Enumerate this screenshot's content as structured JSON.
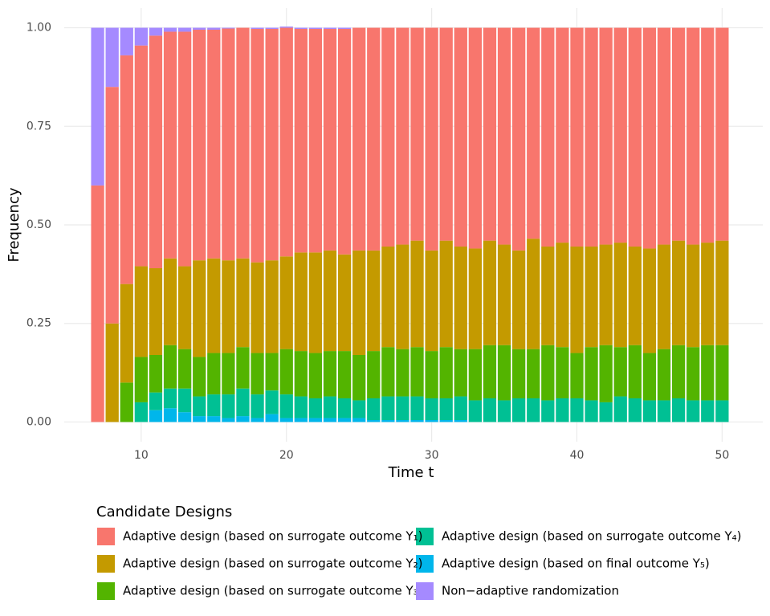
{
  "chart_data": {
    "type": "stacked_bar",
    "x_label": "Time t",
    "y_label": "Frequency",
    "legend_title": "Candidate Designs",
    "x": [
      7,
      8,
      9,
      10,
      11,
      12,
      13,
      14,
      15,
      16,
      17,
      18,
      19,
      20,
      21,
      22,
      23,
      24,
      25,
      26,
      27,
      28,
      29,
      30,
      31,
      32,
      33,
      34,
      35,
      36,
      37,
      38,
      39,
      40,
      41,
      42,
      43,
      44,
      45,
      46,
      47,
      48,
      49,
      50
    ],
    "xlim": [
      4.7,
      52.8
    ],
    "xticks": [
      10,
      20,
      30,
      40,
      50
    ],
    "ylim": [
      -0.05,
      1.05
    ],
    "yticks": [
      {
        "value": 0,
        "label": "0.00"
      },
      {
        "value": 0.25,
        "label": "0.25"
      },
      {
        "value": 0.5,
        "label": "0.50"
      },
      {
        "value": 0.75,
        "label": "0.75"
      },
      {
        "value": 1,
        "label": "1.00"
      }
    ],
    "grid": true,
    "series": [
      {
        "name": "Adaptive design (based on final outcome Y₅)",
        "color": "#00B6EB",
        "values": [
          0,
          0,
          0,
          0,
          0.03,
          0.035,
          0.025,
          0.015,
          0.015,
          0.01,
          0.015,
          0.01,
          0.02,
          0.01,
          0.01,
          0.01,
          0.01,
          0.01,
          0.01,
          0.005,
          0.005,
          0.005,
          0.005,
          0.005,
          0.005,
          0.005,
          0,
          0,
          0,
          0,
          0,
          0,
          0,
          0,
          0,
          0,
          0,
          0,
          0,
          0,
          0,
          0,
          0,
          0
        ]
      },
      {
        "name": "Adaptive design (based on surrogate outcome Y₄)",
        "color": "#00C094",
        "values": [
          0,
          0,
          0,
          0.05,
          0.045,
          0.05,
          0.06,
          0.05,
          0.055,
          0.06,
          0.07,
          0.06,
          0.06,
          0.06,
          0.055,
          0.05,
          0.055,
          0.05,
          0.045,
          0.055,
          0.06,
          0.06,
          0.06,
          0.055,
          0.055,
          0.06,
          0.055,
          0.06,
          0.055,
          0.06,
          0.06,
          0.055,
          0.06,
          0.06,
          0.055,
          0.05,
          0.065,
          0.06,
          0.055,
          0.055,
          0.06,
          0.055,
          0.055,
          0.055
        ]
      },
      {
        "name": "Adaptive design (based on surrogate outcome Y₃)",
        "color": "#53B400",
        "values": [
          0,
          0,
          0.1,
          0.115,
          0.095,
          0.11,
          0.1,
          0.1,
          0.105,
          0.105,
          0.105,
          0.105,
          0.095,
          0.115,
          0.115,
          0.115,
          0.115,
          0.12,
          0.115,
          0.12,
          0.125,
          0.12,
          0.125,
          0.12,
          0.13,
          0.12,
          0.13,
          0.135,
          0.14,
          0.125,
          0.125,
          0.14,
          0.13,
          0.115,
          0.135,
          0.145,
          0.125,
          0.135,
          0.12,
          0.13,
          0.135,
          0.135,
          0.14,
          0.14
        ]
      },
      {
        "name": "Adaptive design (based on surrogate outcome Y₂)",
        "color": "#C49A00",
        "values": [
          0,
          0.25,
          0.25,
          0.23,
          0.22,
          0.22,
          0.21,
          0.245,
          0.24,
          0.235,
          0.225,
          0.23,
          0.235,
          0.235,
          0.25,
          0.255,
          0.255,
          0.245,
          0.265,
          0.255,
          0.255,
          0.265,
          0.27,
          0.255,
          0.27,
          0.26,
          0.255,
          0.265,
          0.255,
          0.25,
          0.28,
          0.25,
          0.265,
          0.27,
          0.255,
          0.255,
          0.265,
          0.25,
          0.265,
          0.265,
          0.265,
          0.26,
          0.26,
          0.265
        ]
      },
      {
        "name": "Adaptive design (based on surrogate outcome Y₁)",
        "color": "#F8766D",
        "values": [
          0.6,
          0.6,
          0.58,
          0.56,
          0.59,
          0.575,
          0.595,
          0.585,
          0.58,
          0.588,
          0.585,
          0.592,
          0.587,
          0.58,
          0.567,
          0.567,
          0.562,
          0.572,
          0.565,
          0.565,
          0.555,
          0.55,
          0.54,
          0.565,
          0.54,
          0.555,
          0.56,
          0.54,
          0.55,
          0.565,
          0.535,
          0.555,
          0.545,
          0.555,
          0.555,
          0.55,
          0.545,
          0.555,
          0.56,
          0.55,
          0.54,
          0.55,
          0.545,
          0.54
        ]
      },
      {
        "name": "Non−adaptive randomization",
        "color": "#A58AFF",
        "values": [
          0.4,
          0.15,
          0.07,
          0.045,
          0.02,
          0.01,
          0.01,
          0.005,
          0.005,
          0.002,
          0,
          0.003,
          0.003,
          0.003,
          0.003,
          0.003,
          0.003,
          0.003,
          0,
          0,
          0,
          0,
          0,
          0,
          0,
          0,
          0,
          0,
          0,
          0,
          0,
          0,
          0,
          0,
          0,
          0,
          0,
          0,
          0,
          0,
          0,
          0,
          0,
          0
        ]
      }
    ]
  }
}
